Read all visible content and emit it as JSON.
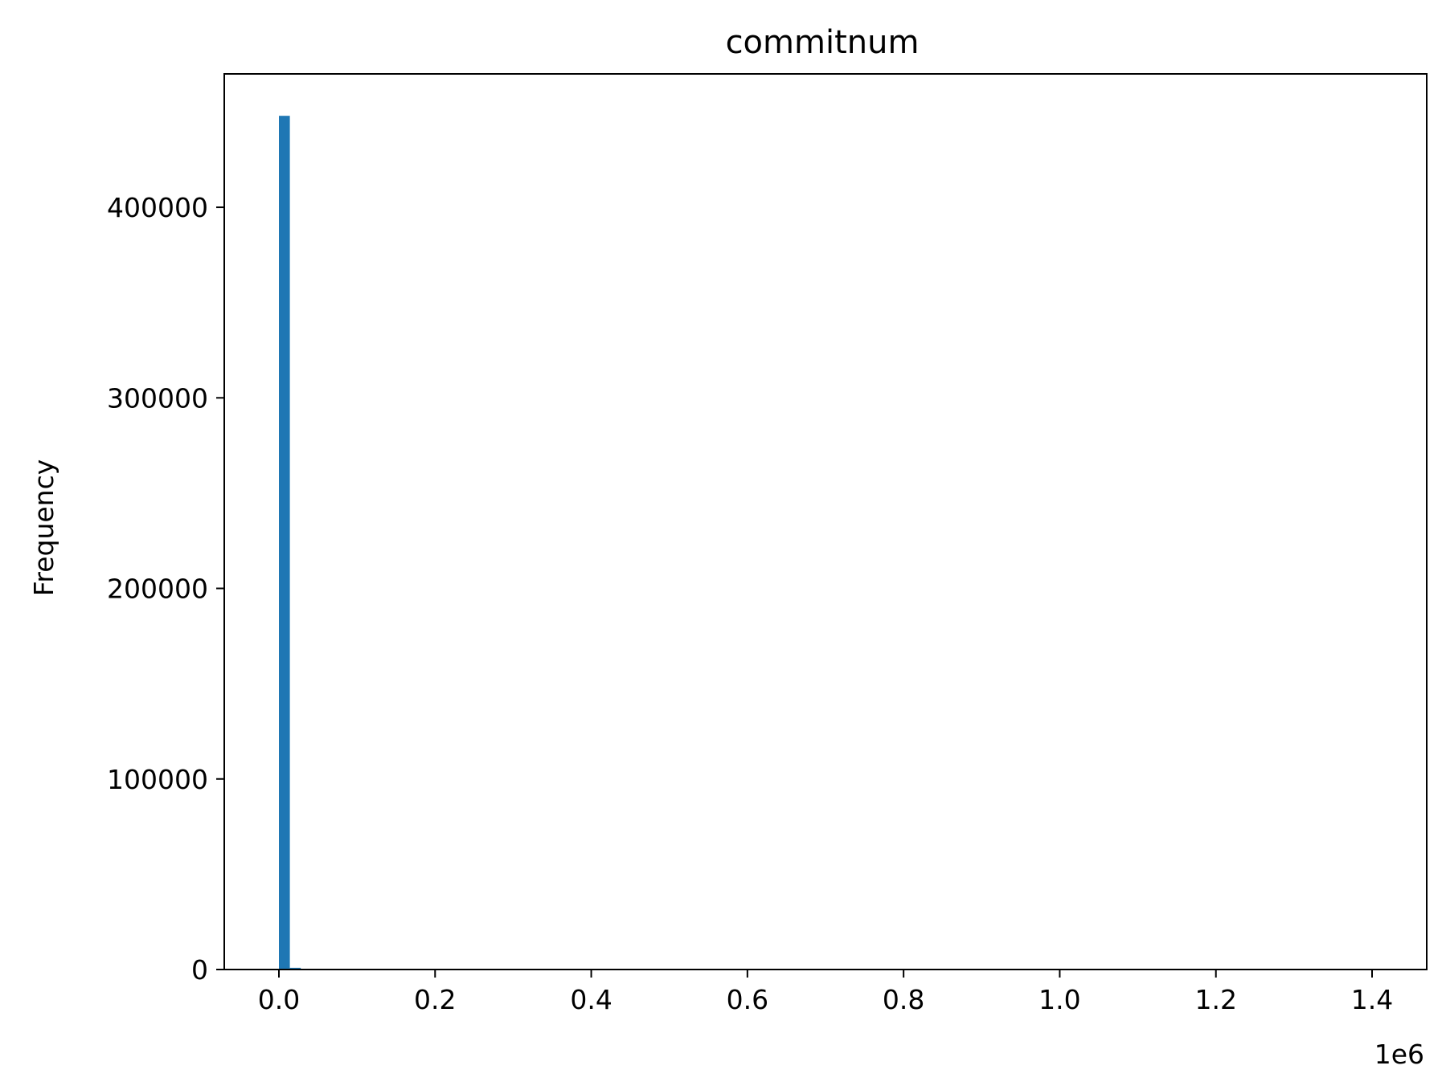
{
  "chart_data": {
    "type": "bar",
    "title": "commitnum",
    "xlabel": "",
    "ylabel": "Frequency",
    "x_offset_label": "1e6",
    "xlim": [
      -70000,
      1470000
    ],
    "ylim": [
      0,
      470000
    ],
    "x_ticks": [
      {
        "value": 0,
        "label": "0.0"
      },
      {
        "value": 200000,
        "label": "0.2"
      },
      {
        "value": 400000,
        "label": "0.4"
      },
      {
        "value": 600000,
        "label": "0.6"
      },
      {
        "value": 800000,
        "label": "0.8"
      },
      {
        "value": 1000000,
        "label": "1.0"
      },
      {
        "value": 1200000,
        "label": "1.2"
      },
      {
        "value": 1400000,
        "label": "1.4"
      }
    ],
    "y_ticks": [
      {
        "value": 0,
        "label": "0"
      },
      {
        "value": 100000,
        "label": "100000"
      },
      {
        "value": 200000,
        "label": "200000"
      },
      {
        "value": 300000,
        "label": "300000"
      },
      {
        "value": 400000,
        "label": "400000"
      }
    ],
    "bars": [
      {
        "x0": 0,
        "x1": 14000,
        "value": 448000
      },
      {
        "x0": 14000,
        "x1": 28000,
        "value": 900
      }
    ],
    "bar_color": "#1f77b4",
    "grid": false,
    "legend": "none"
  }
}
